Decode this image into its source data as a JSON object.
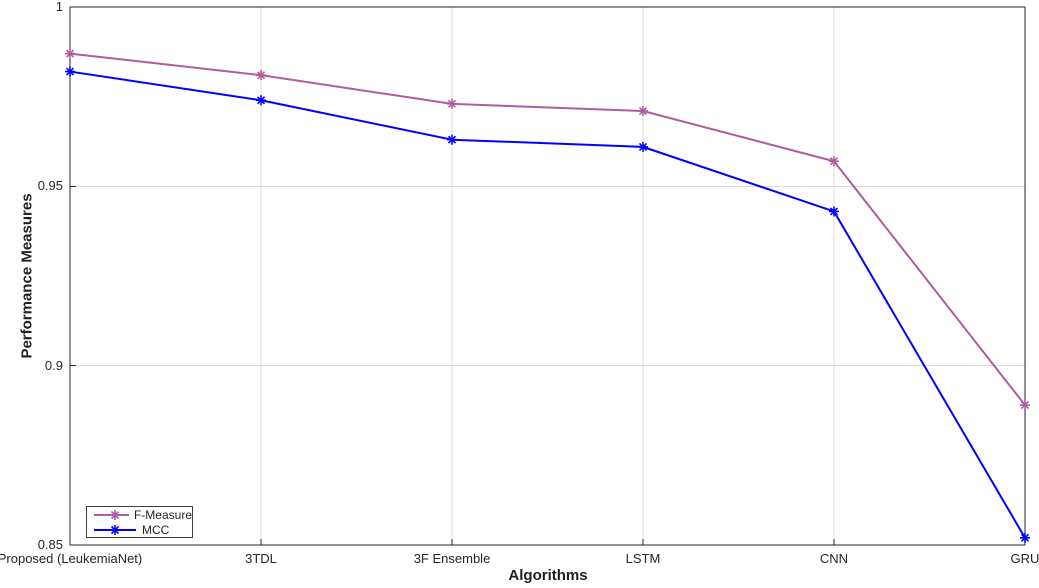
{
  "figure": {
    "background": "#ffffff"
  },
  "chart_data": {
    "type": "line",
    "categories": [
      "Proposed (LeukemiaNet)",
      "3TDL",
      "3F Ensemble",
      "LSTM",
      "CNN",
      "GRU"
    ],
    "series": [
      {
        "name": "F-Measure",
        "color": "#b05c9e",
        "marker": "asterisk",
        "values": [
          0.987,
          0.981,
          0.973,
          0.971,
          0.957,
          0.889
        ]
      },
      {
        "name": "MCC",
        "color": "#0000ff",
        "marker": "asterisk",
        "values": [
          0.982,
          0.974,
          0.963,
          0.961,
          0.943,
          0.852
        ]
      }
    ],
    "title": "",
    "xlabel": "Algorithms",
    "ylabel": "Performance Measures",
    "ylim": [
      0.85,
      1.0
    ],
    "yticks": [
      0.85,
      0.9,
      0.95,
      1
    ],
    "yticklabels": [
      "0.85",
      "0.9",
      "0.95",
      "1"
    ],
    "grid": true,
    "legend_position": "lower-left",
    "axis_color": "#262626",
    "grid_color": "#dcdcdc"
  }
}
